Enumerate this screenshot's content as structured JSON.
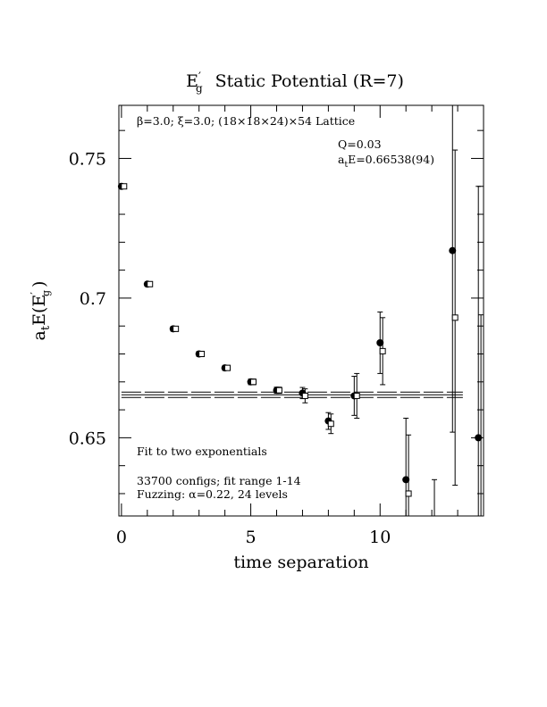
{
  "chart_data": {
    "type": "scatter",
    "title_main": "E",
    "title_prime": "′",
    "title_sub": "g",
    "title_rest": "Static Potential (R=7)",
    "ylabel_pre": "a",
    "ylabel_sub_t": "t",
    "ylabel_mid": "E(E",
    "ylabel_prime": "′",
    "ylabel_sub_g": "g",
    "ylabel_post": ")",
    "xlabel": "time separation",
    "header_text": "β=3.0; ξ=3.0; (18×18×24)×54 Lattice",
    "fit_q": "Q=0.03",
    "fit_energy_pre": "a",
    "fit_energy_sub": "t",
    "fit_energy_post": "E=0.66538(94)",
    "note_fit": "Fit to two exponentials",
    "note_configs": "33700 configs; fit range 1-14",
    "note_fuzzing": "Fuzzing: α=0.22, 24 levels",
    "xlim": [
      -0.1,
      14
    ],
    "ylim": [
      0.622,
      0.769
    ],
    "x_ticks": [
      0,
      5,
      10
    ],
    "x_tick_labels": [
      "0",
      "5",
      "10"
    ],
    "y_ticks": [
      0.65,
      0.7,
      0.75
    ],
    "y_tick_labels": [
      "0.65",
      "0.7",
      "0.75"
    ],
    "fit": {
      "value": 0.66538,
      "error": 0.00094,
      "x_range": [
        0,
        13.2
      ]
    },
    "series": [
      {
        "marker": "filled-circle",
        "x": [
          0,
          1,
          2,
          3,
          4,
          5,
          6,
          7,
          8,
          9,
          10,
          11,
          12.8,
          13.8
        ],
        "y": [
          0.74,
          0.705,
          0.689,
          0.68,
          0.675,
          0.67,
          0.667,
          0.666,
          0.656,
          0.665,
          0.684,
          0.635,
          0.717,
          0.65
        ],
        "yerr": [
          0.0008,
          0.0008,
          0.0009,
          0.0009,
          0.0009,
          0.001,
          0.0011,
          0.002,
          0.003,
          0.007,
          0.011,
          0.022,
          0.065,
          0.09
        ]
      },
      {
        "marker": "open-square",
        "x": [
          0.1,
          1.1,
          2.1,
          3.1,
          4.1,
          5.1,
          6.1,
          7.1,
          8.1,
          9.1,
          10.1,
          11.1,
          12.1,
          12.9,
          13.9
        ],
        "y": [
          0.74,
          0.705,
          0.689,
          0.68,
          0.675,
          0.67,
          0.667,
          0.665,
          0.655,
          0.665,
          0.681,
          0.63,
          0.6,
          0.693,
          0.612
        ],
        "yerr": [
          0.0008,
          0.0008,
          0.0009,
          0.0009,
          0.0009,
          0.001,
          0.0011,
          0.0025,
          0.0035,
          0.008,
          0.012,
          0.021,
          0.035,
          0.06,
          0.082
        ]
      }
    ]
  }
}
